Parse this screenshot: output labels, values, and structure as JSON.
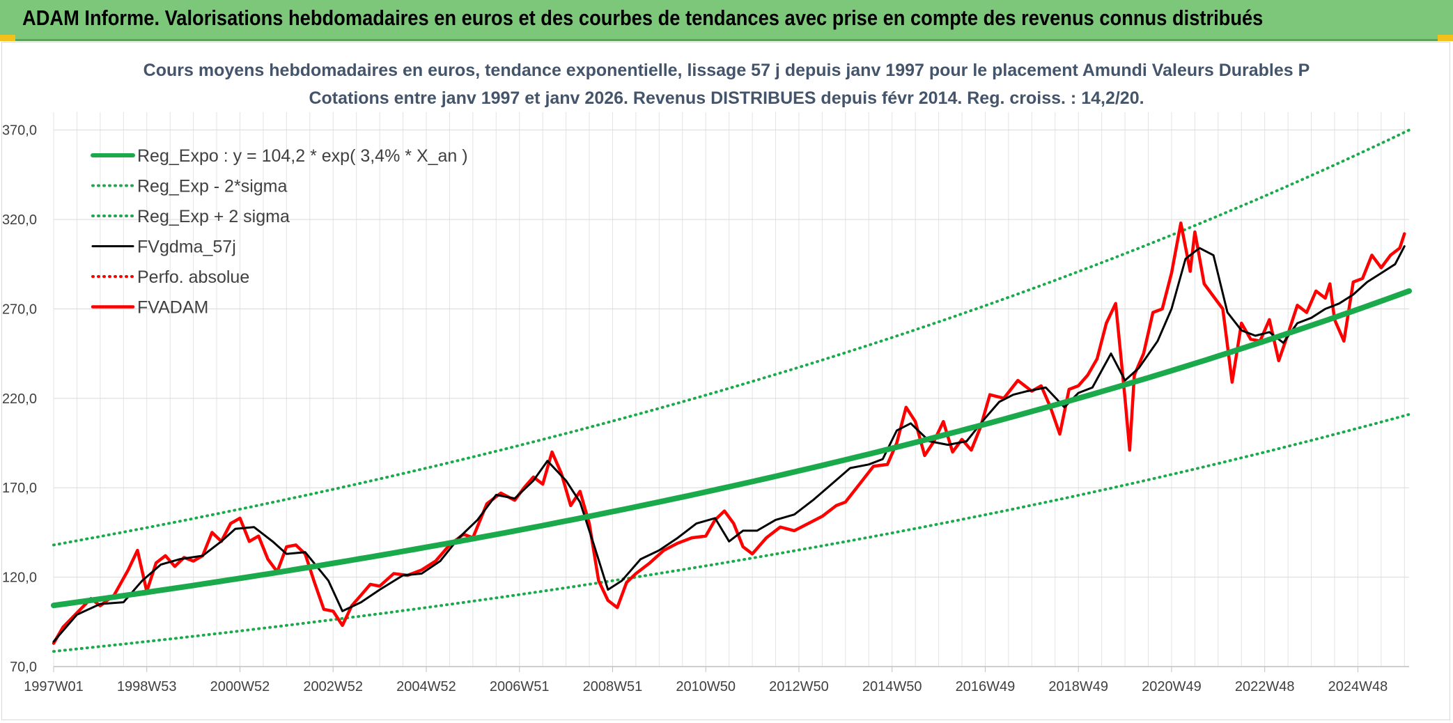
{
  "banner": {
    "title": "ADAM Informe. Valorisations hebdomadaires en euros et des courbes de tendances avec prise en compte des revenus connus distribués",
    "colors": {
      "background": "#7dc77a",
      "corner": "#f2c21b"
    }
  },
  "chart_data": {
    "type": "line",
    "title_lines": [
      "Cours moyens hebdomadaires en euros, tendance exponentielle, lissage 57 j depuis janv 1997 pour le placement Amundi Valeurs Durables P",
      "Cotations entre janv 1997 et janv 2026. Revenus DISTRIBUES depuis févr 2014. Reg. croiss. : 14,2/20."
    ],
    "xlabel": "",
    "ylabel": "",
    "ylim": [
      70,
      380
    ],
    "yticks": [
      "70,0",
      "120,0",
      "170,0",
      "220,0",
      "270,0",
      "320,0",
      "370,0"
    ],
    "ytick_values": [
      70,
      120,
      170,
      220,
      270,
      320,
      370
    ],
    "xlim": [
      1997.0,
      2026.1
    ],
    "xticks": [
      "1997W01",
      "1998W53",
      "2000W52",
      "2002W52",
      "2004W52",
      "2006W51",
      "2008W51",
      "2010W50",
      "2012W50",
      "2014W50",
      "2016W49",
      "2018W49",
      "2020W49",
      "2022W48",
      "2024W48"
    ],
    "xtick_values": [
      1997.0,
      1999.0,
      2001.0,
      2003.0,
      2005.0,
      2007.0,
      2009.0,
      2011.0,
      2013.0,
      2015.0,
      2017.0,
      2019.0,
      2021.0,
      2023.0,
      2025.0
    ],
    "grid": true,
    "legend_position": "top-left",
    "series": [
      {
        "name": "Reg_Expo : y = 104,2 * exp( 3,4% *  X_an )",
        "color": "#1aaa4b",
        "style": "solid-thick",
        "x": [
          1997.0,
          2026.1
        ],
        "y": [
          104.2,
          280
        ]
      },
      {
        "name": "Reg_Exp - 2*sigma",
        "color": "#1aaa4b",
        "style": "dotted",
        "x": [
          1997.0,
          2026.1
        ],
        "y": [
          78.5,
          211
        ]
      },
      {
        "name": "Reg_Exp + 2 sigma",
        "color": "#1aaa4b",
        "style": "dotted",
        "x": [
          1997.0,
          2026.1
        ],
        "y": [
          138,
          370
        ]
      },
      {
        "name": "FVgdma_57j",
        "color": "#000000",
        "style": "solid",
        "x": [
          1997.0,
          1997.5,
          1998.0,
          1998.5,
          1998.9,
          1999.3,
          1999.7,
          2000.2,
          2000.6,
          2000.9,
          2001.3,
          2001.7,
          2002.0,
          2002.4,
          2002.9,
          2003.2,
          2003.6,
          2004.0,
          2004.5,
          2004.9,
          2005.3,
          2005.7,
          2006.1,
          2006.5,
          2006.9,
          2007.3,
          2007.6,
          2008.0,
          2008.3,
          2008.6,
          2008.9,
          2009.2,
          2009.6,
          2010.0,
          2010.4,
          2010.8,
          2011.2,
          2011.5,
          2011.8,
          2012.1,
          2012.5,
          2012.9,
          2013.3,
          2013.7,
          2014.1,
          2014.5,
          2014.8,
          2015.1,
          2015.4,
          2015.8,
          2016.2,
          2016.6,
          2017.0,
          2017.3,
          2017.6,
          2017.9,
          2018.3,
          2018.7,
          2019.0,
          2019.3,
          2019.7,
          2020.0,
          2020.3,
          2020.7,
          2021.0,
          2021.3,
          2021.6,
          2021.9,
          2022.2,
          2022.5,
          2022.8,
          2023.1,
          2023.4,
          2023.7,
          2024.0,
          2024.3,
          2024.6,
          2024.9,
          2025.2,
          2025.5,
          2025.8,
          2026.0
        ],
        "y": [
          84,
          99,
          105,
          106,
          118,
          127,
          130,
          132,
          140,
          147,
          148,
          140,
          133,
          134,
          118,
          101,
          106,
          113,
          121,
          122,
          129,
          142,
          152,
          166,
          164,
          174,
          185,
          174,
          162,
          138,
          113,
          118,
          130,
          135,
          142,
          150,
          153,
          140,
          146,
          146,
          152,
          155,
          163,
          172,
          181,
          183,
          186,
          202,
          206,
          196,
          194,
          196,
          209,
          218,
          222,
          224,
          226,
          215,
          223,
          226,
          245,
          230,
          237,
          252,
          270,
          298,
          304,
          300,
          268,
          258,
          255,
          257,
          251,
          262,
          265,
          270,
          273,
          278,
          285,
          290,
          295,
          305
        ]
      },
      {
        "name": "Perfo. absolue",
        "color": "#ff0000",
        "style": "dotted",
        "x": [],
        "y": []
      },
      {
        "name": "FVADAM",
        "color": "#ff0000",
        "style": "solid-thick",
        "x": [
          1997.0,
          1997.2,
          1997.5,
          1997.8,
          1998.0,
          1998.3,
          1998.6,
          1998.8,
          1999.0,
          1999.2,
          1999.4,
          1999.6,
          1999.8,
          2000.0,
          2000.2,
          2000.4,
          2000.6,
          2000.8,
          2001.0,
          2001.2,
          2001.4,
          2001.6,
          2001.8,
          2002.0,
          2002.2,
          2002.4,
          2002.6,
          2002.8,
          2003.0,
          2003.2,
          2003.4,
          2003.6,
          2003.8,
          2004.0,
          2004.3,
          2004.6,
          2004.9,
          2005.2,
          2005.5,
          2005.8,
          2006.0,
          2006.3,
          2006.6,
          2006.9,
          2007.1,
          2007.3,
          2007.5,
          2007.7,
          2007.9,
          2008.1,
          2008.3,
          2008.5,
          2008.7,
          2008.9,
          2009.1,
          2009.3,
          2009.5,
          2009.8,
          2010.1,
          2010.4,
          2010.7,
          2011.0,
          2011.2,
          2011.4,
          2011.6,
          2011.8,
          2012.0,
          2012.3,
          2012.6,
          2012.9,
          2013.2,
          2013.5,
          2013.8,
          2014.0,
          2014.3,
          2014.6,
          2014.9,
          2015.1,
          2015.3,
          2015.5,
          2015.7,
          2015.9,
          2016.1,
          2016.3,
          2016.5,
          2016.7,
          2016.9,
          2017.1,
          2017.4,
          2017.7,
          2018.0,
          2018.2,
          2018.4,
          2018.6,
          2018.8,
          2019.0,
          2019.2,
          2019.4,
          2019.6,
          2019.8,
          2020.0,
          2020.1,
          2020.2,
          2020.4,
          2020.6,
          2020.8,
          2021.0,
          2021.2,
          2021.4,
          2021.5,
          2021.7,
          2021.9,
          2022.1,
          2022.3,
          2022.5,
          2022.7,
          2022.9,
          2023.1,
          2023.3,
          2023.5,
          2023.7,
          2023.9,
          2024.1,
          2024.3,
          2024.4,
          2024.5,
          2024.7,
          2024.9,
          2025.1,
          2025.3,
          2025.5,
          2025.7,
          2025.9,
          2026.0
        ],
        "y": [
          83,
          92,
          100,
          108,
          104,
          110,
          124,
          135,
          112,
          128,
          132,
          126,
          131,
          129,
          132,
          145,
          140,
          150,
          153,
          140,
          143,
          130,
          123,
          137,
          138,
          133,
          117,
          102,
          101,
          93,
          104,
          110,
          116,
          115,
          122,
          121,
          124,
          129,
          138,
          144,
          142,
          161,
          167,
          163,
          170,
          176,
          172,
          190,
          178,
          160,
          168,
          150,
          118,
          107,
          103,
          117,
          122,
          128,
          135,
          139,
          142,
          143,
          152,
          157,
          150,
          137,
          133,
          142,
          148,
          146,
          150,
          154,
          160,
          162,
          172,
          182,
          183,
          195,
          215,
          207,
          188,
          196,
          207,
          190,
          197,
          191,
          204,
          222,
          220,
          230,
          224,
          227,
          215,
          200,
          225,
          227,
          233,
          242,
          262,
          273,
          220,
          191,
          233,
          245,
          268,
          270,
          290,
          318,
          291,
          313,
          284,
          277,
          270,
          229,
          262,
          253,
          252,
          264,
          241,
          256,
          272,
          268,
          280,
          276,
          284,
          264,
          252,
          285,
          287,
          300,
          293,
          300,
          304,
          312
        ]
      }
    ]
  }
}
